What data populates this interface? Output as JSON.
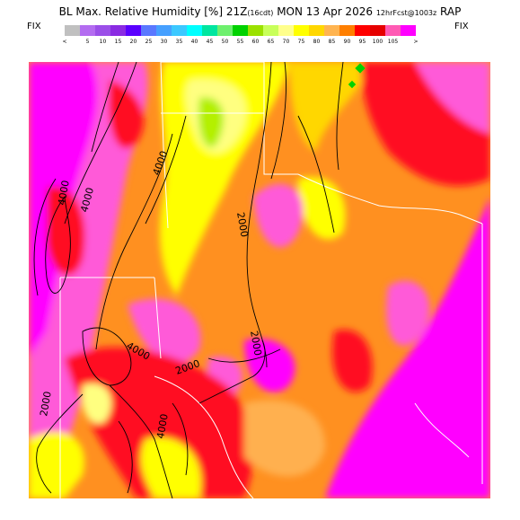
{
  "title": {
    "main": "BL Max. Relative Humidity [%] 21Z",
    "local_time": "(16cdt)",
    "date": "MON 13 Apr 2026",
    "forecast": "12hrFcst@1003z",
    "model": "RAP"
  },
  "legend": {
    "fix_left": "FIX",
    "fix_right": "FIX",
    "lt_symbol": "<",
    "gt_symbol": ">",
    "ticks": [
      "5",
      "10",
      "15",
      "20",
      "25",
      "30",
      "35",
      "40",
      "45",
      "50",
      "55",
      "60",
      "65",
      "70",
      "75",
      "80",
      "85",
      "90",
      "95",
      "100",
      "105"
    ],
    "colors": [
      "#c0c0c0",
      "#b36cf0",
      "#9b4fe8",
      "#8a2be2",
      "#5a00ff",
      "#5a78ff",
      "#46a0ff",
      "#3cc8ff",
      "#00ffff",
      "#00e6a0",
      "#6ef06e",
      "#00d200",
      "#9be100",
      "#c8ff5a",
      "#ffff8c",
      "#ffff00",
      "#ffd700",
      "#ffb450",
      "#ff7f00",
      "#ff0000",
      "#e60000",
      "#ff5ab4",
      "#ff00ff"
    ]
  },
  "map": {
    "contour_labels": [
      "4000",
      "4000",
      "4000",
      "2000",
      "2000",
      "4000",
      "2000",
      "2000",
      "4000"
    ],
    "colors": {
      "magenta": "#ff00ff",
      "pink": "#ff5ad8",
      "red": "#ff1020",
      "orange": "#ff9020",
      "light_orange": "#ffb050",
      "yellow": "#ffff00",
      "light_yellow": "#ffff80",
      "lime": "#b4f000",
      "green": "#00d200"
    }
  }
}
